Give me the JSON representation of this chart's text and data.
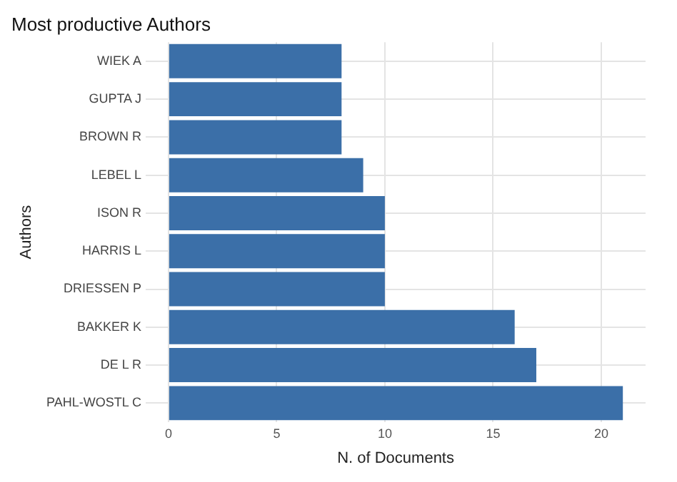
{
  "chart_data": {
    "type": "bar",
    "orientation": "horizontal",
    "title": "Most productive Authors",
    "xlabel": "N. of Documents",
    "ylabel": "Authors",
    "categories": [
      "WIEK A",
      "GUPTA J",
      "BROWN R",
      "LEBEL L",
      "ISON R",
      "HARRIS L",
      "DRIESSEN P",
      "BAKKER K",
      "DE L R",
      "PAHL-WOSTL C"
    ],
    "values": [
      8,
      8,
      8,
      9,
      10,
      10,
      10,
      16,
      17,
      21
    ],
    "color": "#3b6fa8",
    "xlim": [
      -1.05,
      22.05
    ],
    "xticks": [
      0,
      5,
      10,
      15,
      20
    ],
    "grid": true,
    "legend": false
  }
}
